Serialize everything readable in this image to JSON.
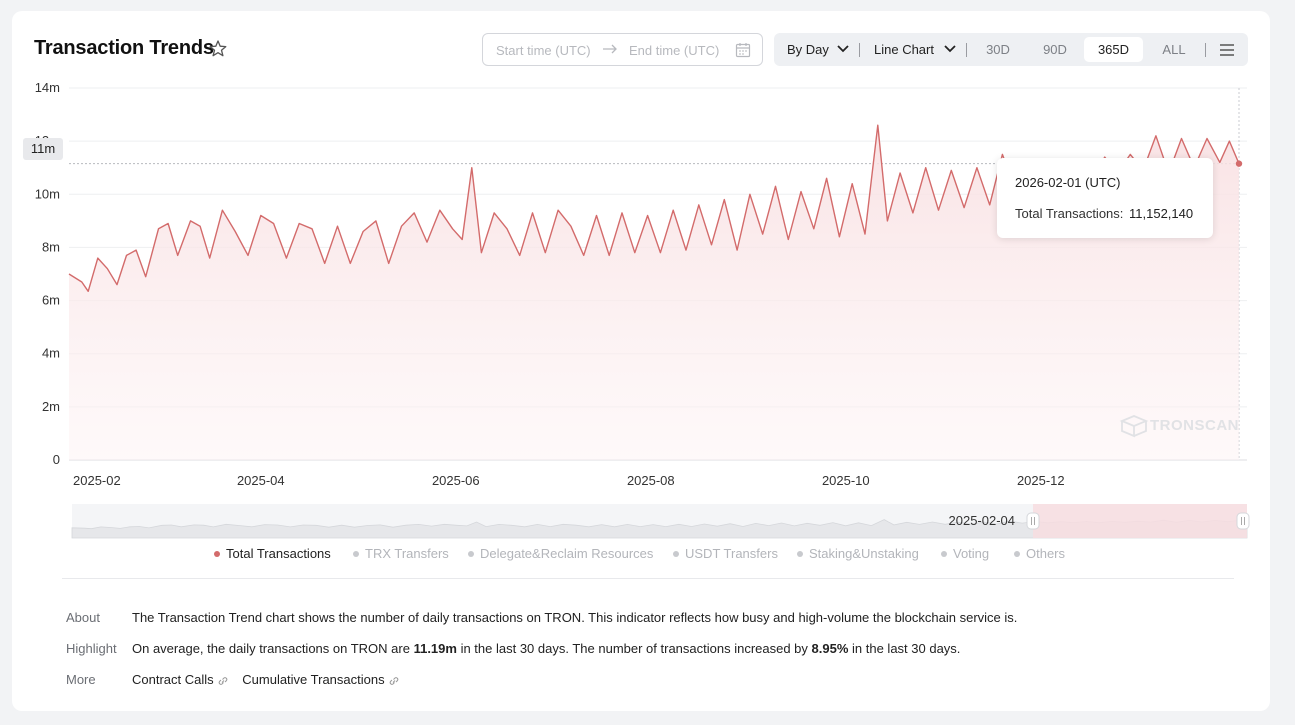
{
  "header": {
    "title": "Transaction Trends",
    "start_placeholder": "Start time (UTC)",
    "end_placeholder": "End time (UTC)",
    "by_day": "By Day",
    "chart_type": "Line Chart",
    "ranges": [
      "30D",
      "90D",
      "365D",
      "ALL"
    ],
    "active_range": "365D"
  },
  "tooltip": {
    "date": "2026-02-01 (UTC)",
    "label": "Total Transactions:",
    "value": "11,152,140"
  },
  "y_badge": "11m",
  "slider": {
    "label": "2025-02-04"
  },
  "watermark": "TRONSCAN",
  "legend": [
    {
      "label": "Total Transactions",
      "active": true,
      "color": "#d36b6b"
    },
    {
      "label": "TRX Transfers",
      "active": false,
      "color": "#c8cace"
    },
    {
      "label": "Delegate&Reclaim Resources",
      "active": false,
      "color": "#c8cace"
    },
    {
      "label": "USDT Transfers",
      "active": false,
      "color": "#c8cace"
    },
    {
      "label": "Staking&Unstaking",
      "active": false,
      "color": "#c8cace"
    },
    {
      "label": "Voting",
      "active": false,
      "color": "#c8cace"
    },
    {
      "label": "Others",
      "active": false,
      "color": "#c8cace"
    }
  ],
  "info": {
    "about_label": "About",
    "about_text": "The Transaction Trend chart shows the number of daily transactions on TRON. This indicator reflects how busy and high-volume the blockchain service is.",
    "highlight_label": "Highlight",
    "highlight_pre": "On average, the daily transactions on TRON are ",
    "highlight_avg": "11.19m",
    "highlight_mid": " in the last 30 days.  The number of transactions increased by ",
    "highlight_pct": "8.95%",
    "highlight_post": " in the last 30 days.",
    "more_label": "More",
    "more_links": [
      "Contract Calls",
      "Cumulative Transactions"
    ]
  },
  "colors": {
    "line": "#d36b6b",
    "accent_light": "#f7dde0"
  },
  "chart_data": {
    "type": "line",
    "title": "",
    "xlabel": "",
    "ylabel": "",
    "x_ticks": [
      "2025-02",
      "2025-04",
      "2025-06",
      "2025-08",
      "2025-10",
      "2025-12"
    ],
    "y_ticks": [
      "0",
      "2m",
      "4m",
      "6m",
      "8m",
      "10m",
      "12m",
      "14m"
    ],
    "ylim": [
      0,
      14000000
    ],
    "xlim": [
      "2025-01-31",
      "2026-02-01"
    ],
    "grid": true,
    "series": [
      {
        "name": "Total Transactions",
        "points": [
          [
            "2025-01-31",
            7000000
          ],
          [
            "2025-02-04",
            6700000
          ],
          [
            "2025-02-06",
            6350000
          ],
          [
            "2025-02-09",
            7600000
          ],
          [
            "2025-02-12",
            7200000
          ],
          [
            "2025-02-15",
            6600000
          ],
          [
            "2025-02-18",
            7700000
          ],
          [
            "2025-02-21",
            7900000
          ],
          [
            "2025-02-24",
            6900000
          ],
          [
            "2025-02-28",
            8700000
          ],
          [
            "2025-03-03",
            8900000
          ],
          [
            "2025-03-06",
            7700000
          ],
          [
            "2025-03-10",
            9000000
          ],
          [
            "2025-03-13",
            8800000
          ],
          [
            "2025-03-16",
            7600000
          ],
          [
            "2025-03-20",
            9400000
          ],
          [
            "2025-03-24",
            8600000
          ],
          [
            "2025-03-28",
            7700000
          ],
          [
            "2025-04-01",
            9200000
          ],
          [
            "2025-04-05",
            8900000
          ],
          [
            "2025-04-09",
            7600000
          ],
          [
            "2025-04-13",
            8900000
          ],
          [
            "2025-04-17",
            8700000
          ],
          [
            "2025-04-21",
            7400000
          ],
          [
            "2025-04-25",
            8800000
          ],
          [
            "2025-04-29",
            7400000
          ],
          [
            "2025-05-03",
            8600000
          ],
          [
            "2025-05-07",
            9000000
          ],
          [
            "2025-05-11",
            7400000
          ],
          [
            "2025-05-15",
            8800000
          ],
          [
            "2025-05-19",
            9300000
          ],
          [
            "2025-05-23",
            8200000
          ],
          [
            "2025-05-27",
            9400000
          ],
          [
            "2025-05-31",
            8700000
          ],
          [
            "2025-06-03",
            8300000
          ],
          [
            "2025-06-06",
            11000000
          ],
          [
            "2025-06-09",
            7800000
          ],
          [
            "2025-06-13",
            9300000
          ],
          [
            "2025-06-17",
            8700000
          ],
          [
            "2025-06-21",
            7700000
          ],
          [
            "2025-06-25",
            9300000
          ],
          [
            "2025-06-29",
            7800000
          ],
          [
            "2025-07-03",
            9400000
          ],
          [
            "2025-07-07",
            8800000
          ],
          [
            "2025-07-11",
            7700000
          ],
          [
            "2025-07-15",
            9200000
          ],
          [
            "2025-07-19",
            7700000
          ],
          [
            "2025-07-23",
            9300000
          ],
          [
            "2025-07-27",
            7800000
          ],
          [
            "2025-07-31",
            9200000
          ],
          [
            "2025-08-04",
            7800000
          ],
          [
            "2025-08-08",
            9400000
          ],
          [
            "2025-08-12",
            7900000
          ],
          [
            "2025-08-16",
            9600000
          ],
          [
            "2025-08-20",
            8100000
          ],
          [
            "2025-08-24",
            9800000
          ],
          [
            "2025-08-28",
            7900000
          ],
          [
            "2025-09-01",
            10000000
          ],
          [
            "2025-09-05",
            8500000
          ],
          [
            "2025-09-09",
            10300000
          ],
          [
            "2025-09-13",
            8300000
          ],
          [
            "2025-09-17",
            10100000
          ],
          [
            "2025-09-21",
            8700000
          ],
          [
            "2025-09-25",
            10600000
          ],
          [
            "2025-09-29",
            8400000
          ],
          [
            "2025-10-03",
            10400000
          ],
          [
            "2025-10-07",
            8500000
          ],
          [
            "2025-10-11",
            12600000
          ],
          [
            "2025-10-14",
            9000000
          ],
          [
            "2025-10-18",
            10800000
          ],
          [
            "2025-10-22",
            9300000
          ],
          [
            "2025-10-26",
            11000000
          ],
          [
            "2025-10-30",
            9400000
          ],
          [
            "2025-11-03",
            10900000
          ],
          [
            "2025-11-07",
            9500000
          ],
          [
            "2025-11-11",
            11000000
          ],
          [
            "2025-11-15",
            9600000
          ],
          [
            "2025-11-19",
            11500000
          ],
          [
            "2025-11-23",
            10200000
          ],
          [
            "2025-11-27",
            11300000
          ],
          [
            "2025-12-01",
            10400000
          ],
          [
            "2025-12-05",
            11200000
          ],
          [
            "2025-12-09",
            10600000
          ],
          [
            "2025-12-13",
            11300000
          ],
          [
            "2025-12-17",
            10500000
          ],
          [
            "2025-12-21",
            11400000
          ],
          [
            "2025-12-25",
            10800000
          ],
          [
            "2025-12-29",
            11500000
          ],
          [
            "2026-01-02",
            10900000
          ],
          [
            "2026-01-06",
            12200000
          ],
          [
            "2026-01-10",
            10800000
          ],
          [
            "2026-01-14",
            12100000
          ],
          [
            "2026-01-18",
            11000000
          ],
          [
            "2026-01-22",
            12100000
          ],
          [
            "2026-01-26",
            11200000
          ],
          [
            "2026-01-29",
            12000000
          ],
          [
            "2026-02-01",
            11152140
          ]
        ]
      }
    ]
  }
}
